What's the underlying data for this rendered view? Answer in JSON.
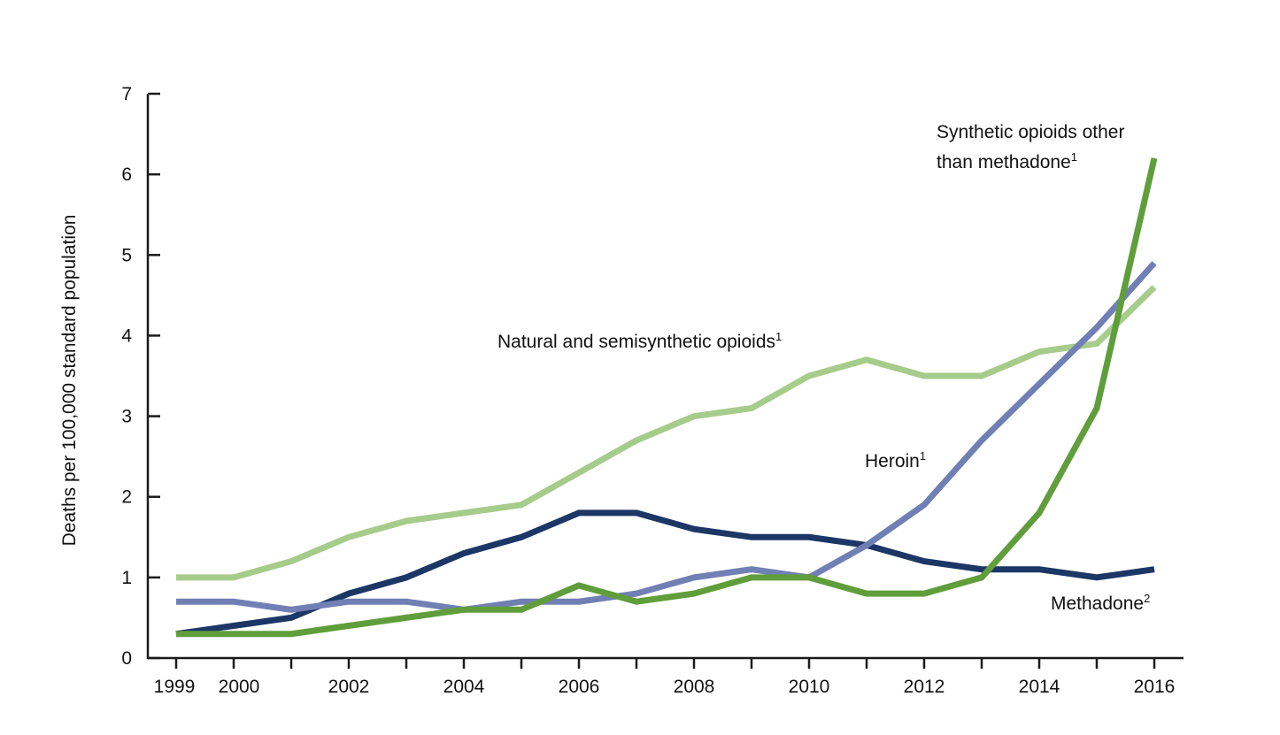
{
  "chart_data": {
    "type": "line",
    "title": "",
    "xlabel": "",
    "ylabel": "Deaths per 100,000 standard population",
    "x": [
      1999,
      2000,
      2001,
      2002,
      2003,
      2004,
      2005,
      2006,
      2007,
      2008,
      2009,
      2010,
      2011,
      2012,
      2013,
      2014,
      2015,
      2016
    ],
    "xticks": [
      1999,
      2000,
      2002,
      2004,
      2006,
      2008,
      2010,
      2012,
      2014,
      2016
    ],
    "xtick_labels": [
      "1999",
      "2000",
      "2002",
      "2004",
      "2006",
      "2008",
      "2010",
      "2012",
      "2014",
      "2016"
    ],
    "xlim": [
      1999,
      2016
    ],
    "yticks": [
      0,
      1,
      2,
      3,
      4,
      5,
      6,
      7
    ],
    "ytick_labels": [
      "0",
      "1",
      "2",
      "3",
      "4",
      "5",
      "6",
      "7"
    ],
    "ylim": [
      0,
      7
    ],
    "grid": false,
    "series": [
      {
        "key": "natural",
        "name": "Natural and semisynthetic opioids",
        "footnote": "1",
        "color": "#a6cc8b",
        "values": [
          1.0,
          1.0,
          1.2,
          1.5,
          1.7,
          1.8,
          1.9,
          2.3,
          2.7,
          3.0,
          3.1,
          3.5,
          3.7,
          3.5,
          3.5,
          3.8,
          3.9,
          4.6
        ]
      },
      {
        "key": "methadone",
        "name": "Methadone",
        "footnote": "2",
        "color": "#1c3766",
        "values": [
          0.3,
          0.4,
          0.5,
          0.8,
          1.0,
          1.3,
          1.5,
          1.8,
          1.8,
          1.6,
          1.5,
          1.5,
          1.4,
          1.2,
          1.1,
          1.1,
          1.0,
          1.1
        ]
      },
      {
        "key": "heroin",
        "name": "Heroin",
        "footnote": "1",
        "color": "#7180b4",
        "values": [
          0.7,
          0.7,
          0.6,
          0.7,
          0.7,
          0.6,
          0.7,
          0.7,
          0.8,
          1.0,
          1.1,
          1.0,
          1.4,
          1.9,
          2.7,
          3.4,
          4.1,
          4.9
        ]
      },
      {
        "key": "synthetic",
        "name": "Synthetic opioids other than methadone",
        "name_lines": [
          "Synthetic opioids other",
          "than methadone"
        ],
        "footnote": "1",
        "color": "#5f9e3b",
        "values": [
          0.3,
          0.3,
          0.3,
          0.4,
          0.5,
          0.6,
          0.6,
          0.9,
          0.7,
          0.8,
          1.0,
          1.0,
          0.8,
          0.8,
          1.0,
          1.8,
          3.1,
          6.2
        ]
      }
    ]
  }
}
